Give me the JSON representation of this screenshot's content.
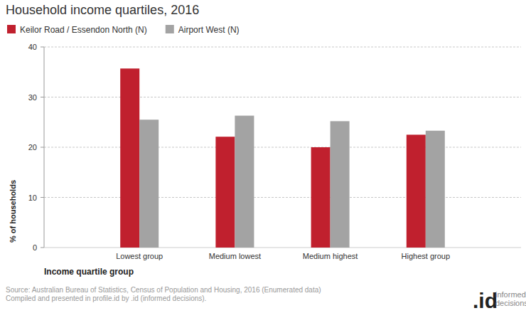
{
  "chart_data": {
    "type": "bar",
    "title": "Household income quartiles, 2016",
    "categories": [
      "Lowest group",
      "Medium lowest",
      "Medium highest",
      "Highest group"
    ],
    "series": [
      {
        "name": "Keilor Road / Essendon North (N)",
        "color": "#c0202e",
        "values": [
          35.7,
          22.1,
          20.0,
          22.5
        ]
      },
      {
        "name": "Airport West (N)",
        "color": "#a3a3a3",
        "values": [
          25.5,
          26.3,
          25.2,
          23.3
        ]
      }
    ],
    "x_label": "Income quartile group",
    "y_label": "% of households",
    "ylim": [
      0,
      40
    ],
    "yticks": [
      0,
      10,
      20,
      30,
      40
    ],
    "grid": true,
    "legend": "top-left"
  },
  "source": [
    "Source: Australian Bureau of Statistics, Census of Population and Housing, 2016 (Enumerated data)",
    "Compiled and presented in profile.id by .id (informed decisions)."
  ],
  "logo": {
    "mark": ".id",
    "text": [
      "informed",
      "decisions"
    ]
  }
}
